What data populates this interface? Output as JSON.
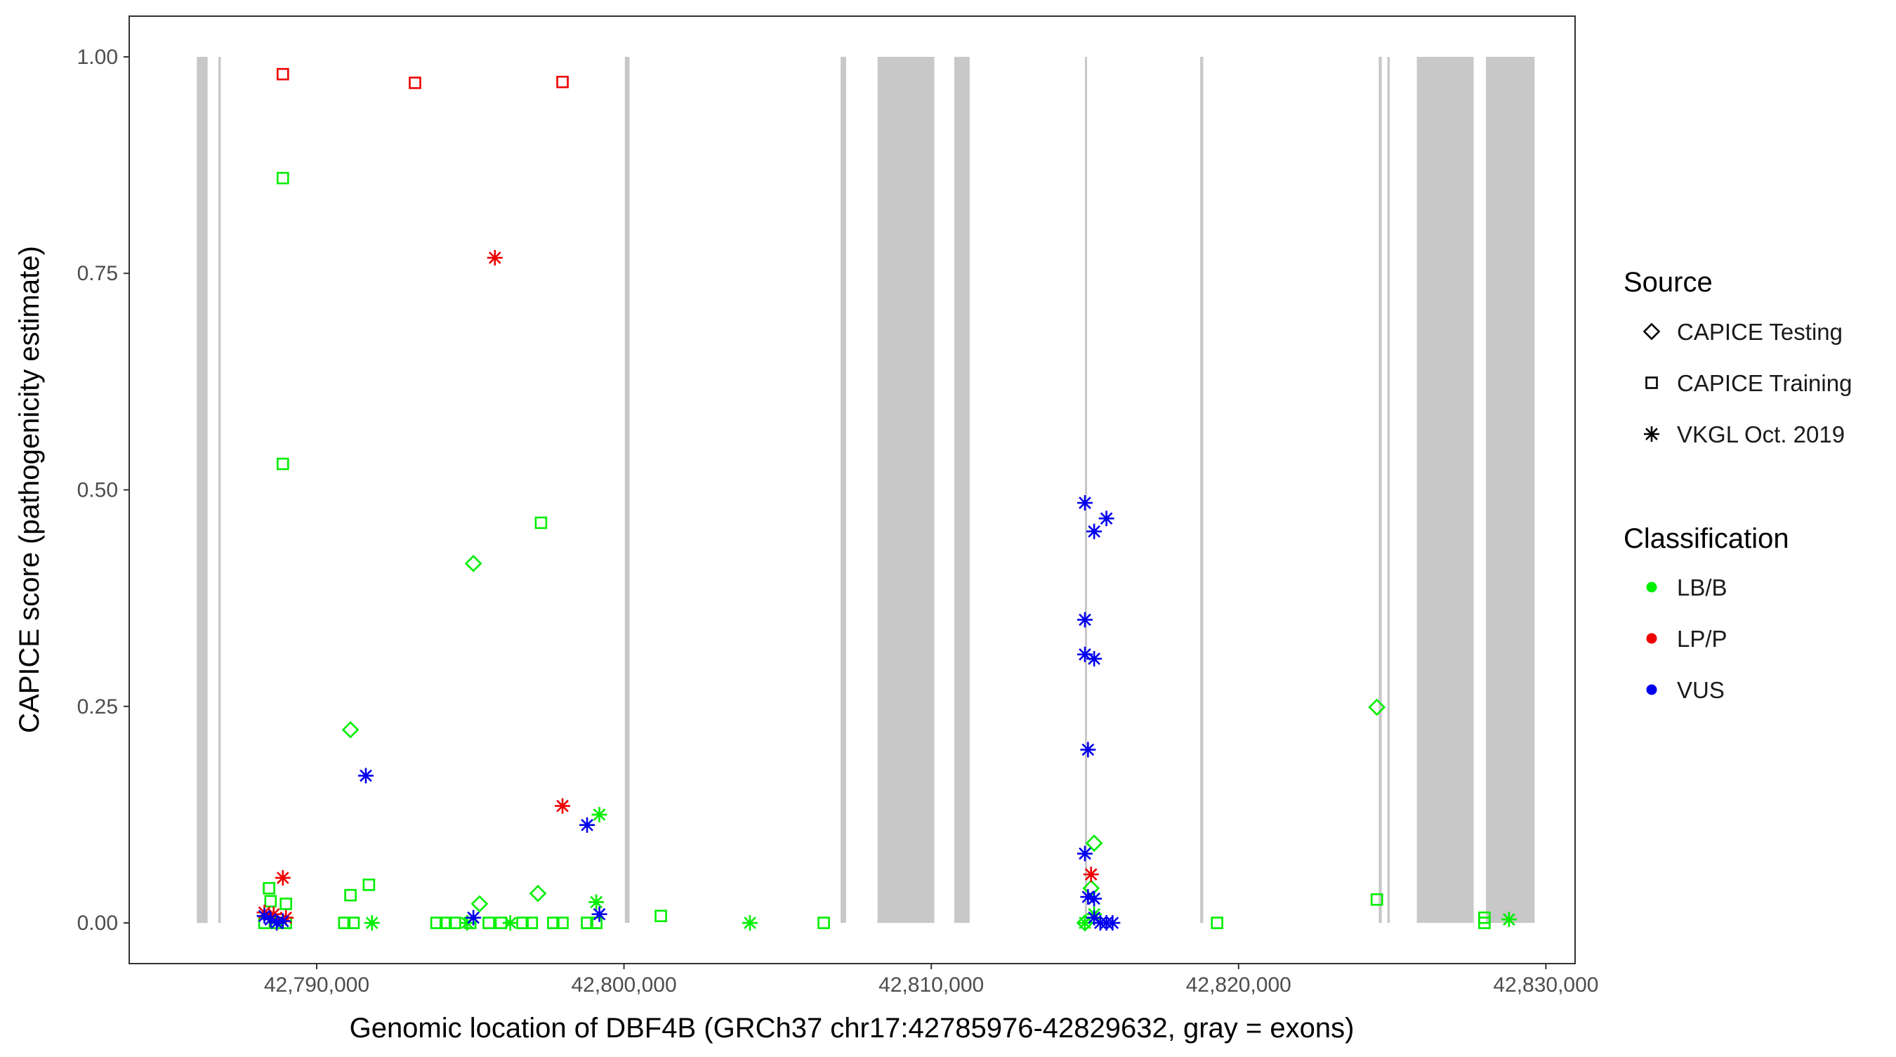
{
  "chart_data": {
    "type": "scatter",
    "xlabel": "Genomic location of DBF4B (GRCh37 chr17:42785976-42829632, gray = exons)",
    "ylabel": "CAPICE score (pathogenicity estimate)",
    "xlim": [
      42783900,
      42830950
    ],
    "ylim": [
      -0.047,
      1.047
    ],
    "x_ticks": [
      42790000,
      42800000,
      42810000,
      42820000,
      42830000
    ],
    "x_tick_labels": [
      "42,790,000",
      "42,800,000",
      "42,810,000",
      "42,820,000",
      "42,830,000"
    ],
    "y_ticks": [
      0,
      0.25,
      0.5,
      0.75,
      1.0
    ],
    "y_tick_labels": [
      "0.00",
      "0.25",
      "0.50",
      "0.75",
      "1.00"
    ],
    "grid": false,
    "legend_position": "right",
    "exon_color": "#c8c8c8",
    "exons": [
      [
        42786100,
        42786450
      ],
      [
        42786800,
        42786880
      ],
      [
        42800030,
        42800180
      ],
      [
        42807050,
        42807230
      ],
      [
        42808250,
        42810100
      ],
      [
        42810750,
        42811250
      ],
      [
        42815000,
        42815060
      ],
      [
        42818750,
        42818850
      ],
      [
        42824560,
        42824660
      ],
      [
        42824840,
        42824920
      ],
      [
        42825800,
        42827650
      ],
      [
        42828050,
        42829632
      ]
    ],
    "legend": {
      "source_title": "Source",
      "sources": [
        {
          "label": "CAPICE Testing",
          "shape": "diamond"
        },
        {
          "label": "CAPICE Training",
          "shape": "square"
        },
        {
          "label": "VKGL Oct. 2019",
          "shape": "asterisk"
        }
      ],
      "classification_title": "Classification",
      "classes": [
        {
          "label": "LB/B",
          "color": "#00ee00"
        },
        {
          "label": "LP/P",
          "color": "#ee0000"
        },
        {
          "label": "VUS",
          "color": "#0000ee"
        }
      ]
    },
    "series": [
      {
        "source": "CAPICE Training",
        "classification": "LP/P",
        "points": [
          [
            42788900,
            0.98
          ],
          [
            42793200,
            0.97
          ],
          [
            42798000,
            0.971
          ]
        ]
      },
      {
        "source": "CAPICE Training",
        "classification": "LB/B",
        "points": [
          [
            42788900,
            0.86
          ],
          [
            42788900,
            0.53
          ],
          [
            42797300,
            0.462
          ],
          [
            42788450,
            0.04
          ],
          [
            42789000,
            0.022
          ],
          [
            42788500,
            0.025
          ],
          [
            42791700,
            0.044
          ],
          [
            42791100,
            0.032
          ],
          [
            42801200,
            0.008
          ],
          [
            42824500,
            0.027
          ],
          [
            42828000,
            0.006
          ],
          [
            42788300,
            0.0
          ],
          [
            42788700,
            0.0
          ],
          [
            42789000,
            0.0
          ],
          [
            42790900,
            0.0
          ],
          [
            42791200,
            0.0
          ],
          [
            42793900,
            0.0
          ],
          [
            42794200,
            0.0
          ],
          [
            42794500,
            0.0
          ],
          [
            42795000,
            0.0
          ],
          [
            42795600,
            0.0
          ],
          [
            42796000,
            0.0
          ],
          [
            42796700,
            0.0
          ],
          [
            42797000,
            0.0
          ],
          [
            42797700,
            0.0
          ],
          [
            42798000,
            0.0
          ],
          [
            42798800,
            0.0
          ],
          [
            42799100,
            0.0
          ],
          [
            42806500,
            0.0
          ],
          [
            42819300,
            0.0
          ],
          [
            42828000,
            0.0
          ]
        ]
      },
      {
        "source": "CAPICE Testing",
        "classification": "LB/B",
        "points": [
          [
            42795100,
            0.415
          ],
          [
            42791100,
            0.223
          ],
          [
            42824500,
            0.249
          ],
          [
            42815300,
            0.092
          ],
          [
            42797200,
            0.034
          ],
          [
            42795300,
            0.022
          ],
          [
            42815200,
            0.04
          ],
          [
            42815000,
            0.0
          ]
        ]
      },
      {
        "source": "VKGL Oct. 2019",
        "classification": "LP/P",
        "points": [
          [
            42795800,
            0.768
          ],
          [
            42798000,
            0.135
          ],
          [
            42788900,
            0.052
          ],
          [
            42815200,
            0.056
          ],
          [
            42788600,
            0.01
          ],
          [
            42788300,
            0.012
          ],
          [
            42789000,
            0.006
          ],
          [
            42788500,
            0.004
          ]
        ]
      },
      {
        "source": "VKGL Oct. 2019",
        "classification": "LB/B",
        "points": [
          [
            42799200,
            0.125
          ],
          [
            42799100,
            0.024
          ],
          [
            42791800,
            0.0
          ],
          [
            42794900,
            0.0
          ],
          [
            42796300,
            0.0
          ],
          [
            42804100,
            0.0
          ],
          [
            42828800,
            0.004
          ],
          [
            42815000,
            0.0
          ],
          [
            42815300,
            0.01
          ]
        ]
      },
      {
        "source": "VKGL Oct. 2019",
        "classification": "VUS",
        "points": [
          [
            42815000,
            0.485
          ],
          [
            42815700,
            0.467
          ],
          [
            42815300,
            0.452
          ],
          [
            42815000,
            0.35
          ],
          [
            42815000,
            0.31
          ],
          [
            42815300,
            0.305
          ],
          [
            42815100,
            0.2
          ],
          [
            42791600,
            0.17
          ],
          [
            42798800,
            0.113
          ],
          [
            42815000,
            0.08
          ],
          [
            42815100,
            0.03
          ],
          [
            42815300,
            0.028
          ],
          [
            42815300,
            0.006
          ],
          [
            42815500,
            0.0
          ],
          [
            42815700,
            0.0
          ],
          [
            42815900,
            0.0
          ],
          [
            42799200,
            0.01
          ],
          [
            42795100,
            0.006
          ],
          [
            42788300,
            0.008
          ],
          [
            42788500,
            0.004
          ],
          [
            42788700,
            0.0
          ],
          [
            42788900,
            0.002
          ]
        ]
      }
    ]
  }
}
